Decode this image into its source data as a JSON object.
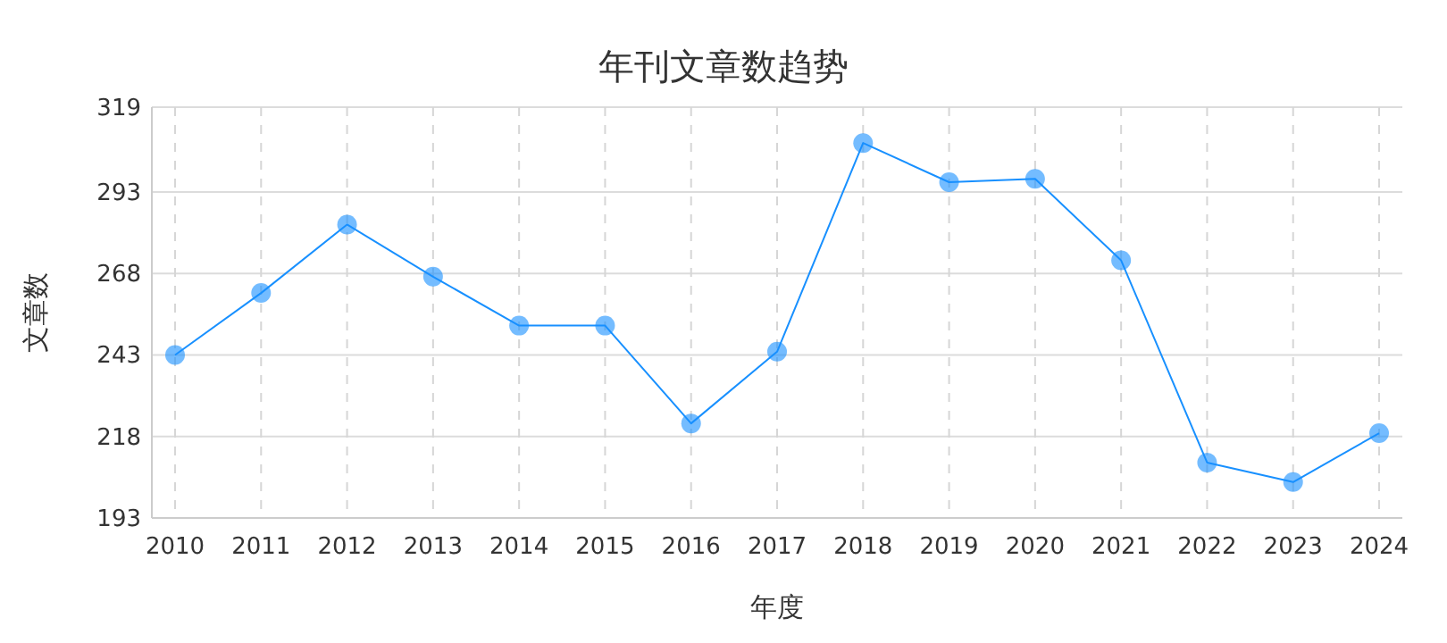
{
  "chart_data": {
    "type": "line",
    "title": "年刊文章数趋势",
    "xlabel": "年度",
    "ylabel": "文章数",
    "categories": [
      "2010",
      "2011",
      "2012",
      "2013",
      "2014",
      "2015",
      "2016",
      "2017",
      "2018",
      "2019",
      "2020",
      "2021",
      "2022",
      "2023",
      "2024"
    ],
    "series": [
      {
        "color": "#1890ff",
        "values": [
          243,
          262,
          283,
          267,
          252,
          252,
          222,
          244,
          308,
          296,
          297,
          272,
          210,
          204,
          219
        ]
      }
    ],
    "ylim": [
      193,
      319
    ],
    "yticks": [
      193,
      218,
      243,
      268,
      293,
      319
    ],
    "grid": true,
    "marker": "circle",
    "line_style": "solid"
  }
}
